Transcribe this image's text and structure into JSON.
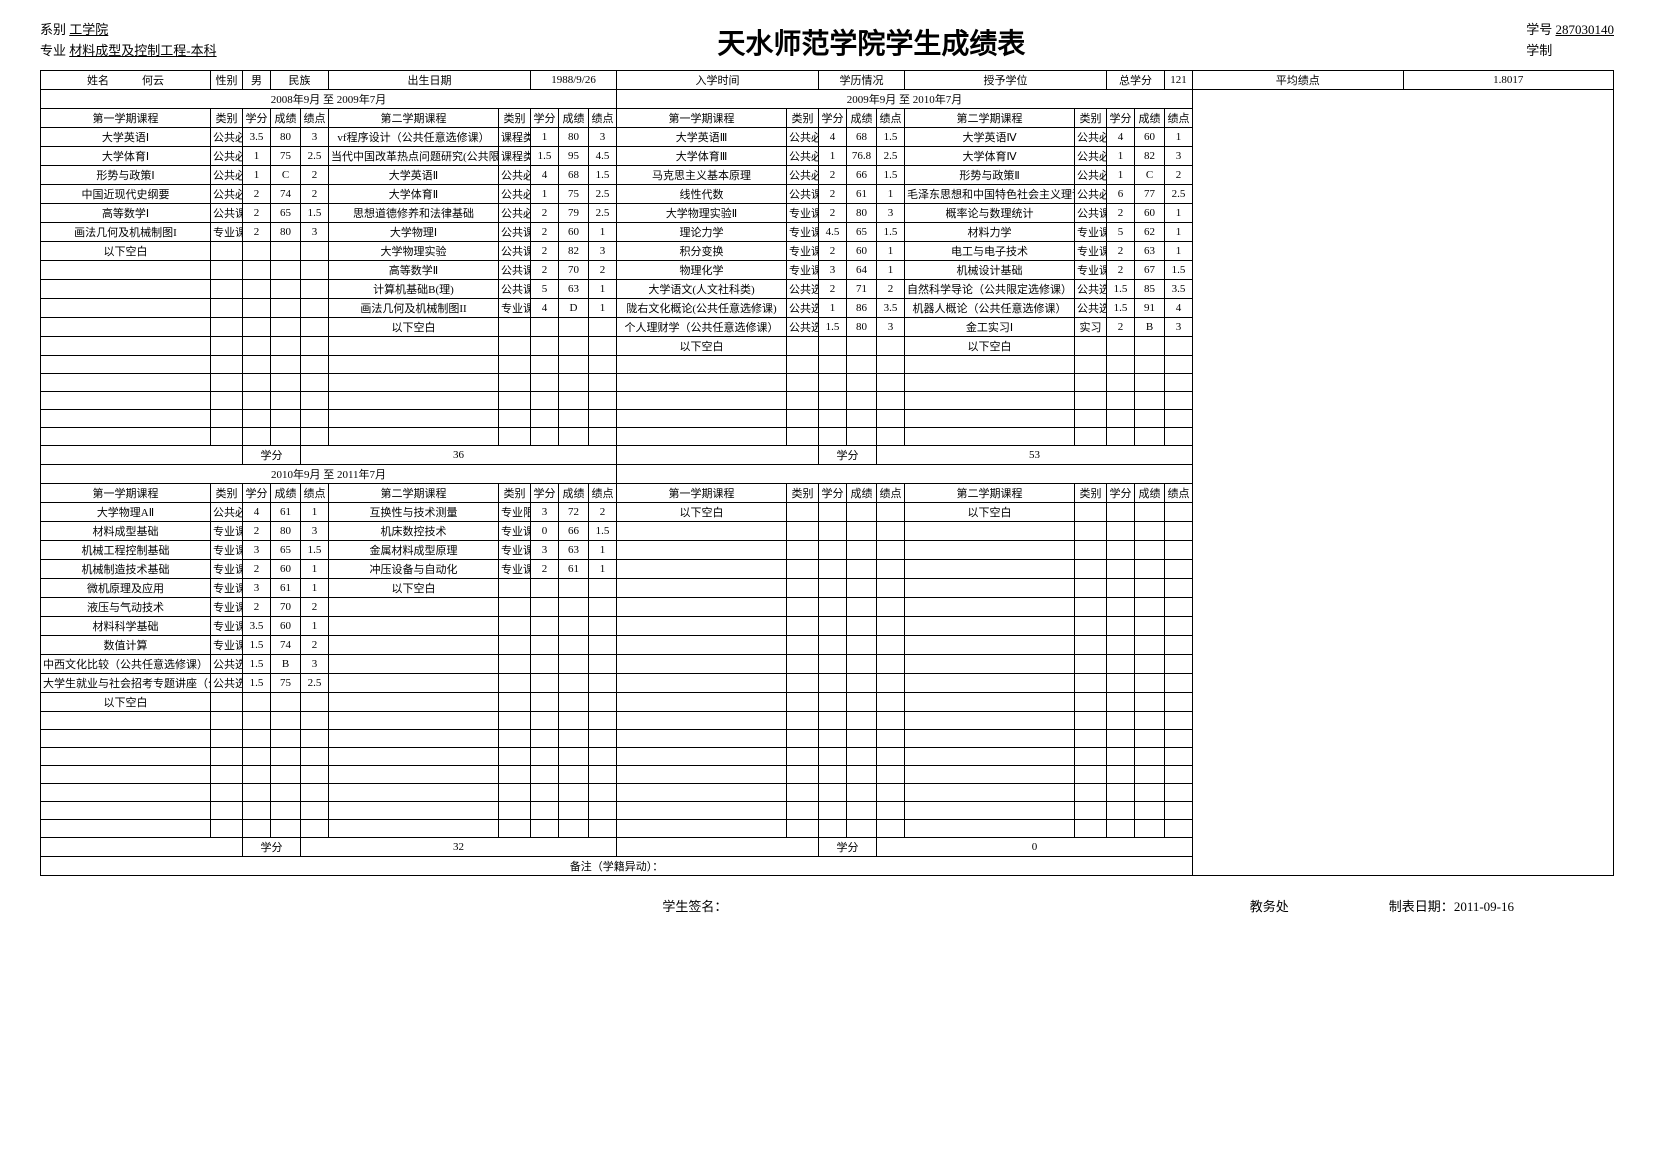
{
  "header": {
    "dept_label": "系别",
    "dept": "工学院",
    "major_label": "专业",
    "major": "材料成型及控制工程-本科",
    "title": "天水师范学院学生成绩表",
    "sid_label": "学号",
    "sid": "287030140",
    "system_label": "学制",
    "system": ""
  },
  "info": {
    "name_label": "姓名",
    "name": "何云",
    "gender_label": "性别",
    "gender": "男",
    "ethnic_label": "民族",
    "ethnic": "",
    "birth_label": "出生日期",
    "birth": "1988/9/26",
    "enroll_label": "入学时间",
    "enroll": "",
    "edu_label": "学历情况",
    "edu": "",
    "degree_label": "授予学位",
    "degree": "",
    "total_credit_label": "总学分",
    "total_credit": "121",
    "gpa_label": "平均绩点",
    "gpa": "1.8017"
  },
  "col_headers": {
    "course": "学期课程",
    "type": "类别",
    "credit": "学分",
    "grade": "成绩",
    "point": "绩点",
    "sem1_prefix": "第一",
    "sem2_prefix": "第二"
  },
  "years": [
    {
      "year_header": "2008年9月 至 2009年7月",
      "sem1": [
        {
          "name": "大学英语Ⅰ",
          "type": "公共必修课",
          "credit": "3.5",
          "grade": "80",
          "point": "3"
        },
        {
          "name": "大学体育Ⅰ",
          "type": "公共必修课",
          "credit": "1",
          "grade": "75",
          "point": "2.5"
        },
        {
          "name": "形势与政策Ⅰ",
          "type": "公共必修课",
          "credit": "1",
          "grade": "C",
          "point": "2"
        },
        {
          "name": "中国近现代史纲要",
          "type": "公共必修课",
          "credit": "2",
          "grade": "74",
          "point": "2"
        },
        {
          "name": "高等数学Ⅰ",
          "type": "公共课",
          "credit": "2",
          "grade": "65",
          "point": "1.5"
        },
        {
          "name": "画法几何及机械制图I",
          "type": "专业课",
          "credit": "2",
          "grade": "80",
          "point": "3"
        },
        {
          "name": "以下空白",
          "type": "",
          "credit": "",
          "grade": "",
          "point": ""
        }
      ],
      "sem2": [
        {
          "name": "vf程序设计（公共任意选修课）",
          "type": "课程类别",
          "credit": "1",
          "grade": "80",
          "point": "3"
        },
        {
          "name": "当代中国改革热点问题研究(公共限定选修课)",
          "type": "课程类别",
          "credit": "1.5",
          "grade": "95",
          "point": "4.5",
          "tiny": true
        },
        {
          "name": "大学英语Ⅱ",
          "type": "公共必修课",
          "credit": "4",
          "grade": "68",
          "point": "1.5"
        },
        {
          "name": "大学体育Ⅱ",
          "type": "公共必修课",
          "credit": "1",
          "grade": "75",
          "point": "2.5"
        },
        {
          "name": "思想道德修养和法律基础",
          "type": "公共必修课",
          "credit": "2",
          "grade": "79",
          "point": "2.5"
        },
        {
          "name": "大学物理Ⅰ",
          "type": "公共课",
          "credit": "2",
          "grade": "60",
          "point": "1"
        },
        {
          "name": "大学物理实验",
          "type": "公共课",
          "credit": "2",
          "grade": "82",
          "point": "3"
        },
        {
          "name": "高等数学Ⅱ",
          "type": "公共课",
          "credit": "2",
          "grade": "70",
          "point": "2"
        },
        {
          "name": "计算机基础B(理)",
          "type": "公共课",
          "credit": "5",
          "grade": "63",
          "point": "1"
        },
        {
          "name": "画法几何及机械制图II",
          "type": "专业课",
          "credit": "4",
          "grade": "D",
          "point": "1"
        },
        {
          "name": "以下空白",
          "type": "",
          "credit": "",
          "grade": "",
          "point": ""
        }
      ],
      "credit_total_label": "学分",
      "credit_total": "36"
    },
    {
      "year_header": "2009年9月 至 2010年7月",
      "sem1": [
        {
          "name": "大学英语Ⅲ",
          "type": "公共必修课",
          "credit": "4",
          "grade": "68",
          "point": "1.5"
        },
        {
          "name": "大学体育Ⅲ",
          "type": "公共必修课",
          "credit": "1",
          "grade": "76.8",
          "point": "2.5"
        },
        {
          "name": "马克思主义基本原理",
          "type": "公共必修课",
          "credit": "2",
          "grade": "66",
          "point": "1.5"
        },
        {
          "name": "线性代数",
          "type": "公共课",
          "credit": "2",
          "grade": "61",
          "point": "1"
        },
        {
          "name": "大学物理实验Ⅱ",
          "type": "专业课",
          "credit": "2",
          "grade": "80",
          "point": "3"
        },
        {
          "name": "理论力学",
          "type": "专业课",
          "credit": "4.5",
          "grade": "65",
          "point": "1.5"
        },
        {
          "name": "积分变换",
          "type": "专业课",
          "credit": "2",
          "grade": "60",
          "point": "1"
        },
        {
          "name": "物理化学",
          "type": "专业课",
          "credit": "3",
          "grade": "64",
          "point": "1"
        },
        {
          "name": "大学语文(人文社科类)",
          "type": "公共选修课",
          "credit": "2",
          "grade": "71",
          "point": "2"
        },
        {
          "name": "陇右文化概论(公共任意选修课)",
          "type": "公共选修课",
          "credit": "1",
          "grade": "86",
          "point": "3.5"
        },
        {
          "name": "个人理财学（公共任意选修课）",
          "type": "公共选修课",
          "credit": "1.5",
          "grade": "80",
          "point": "3"
        },
        {
          "name": "以下空白",
          "type": "",
          "credit": "",
          "grade": "",
          "point": ""
        }
      ],
      "sem2": [
        {
          "name": "大学英语Ⅳ",
          "type": "公共必修课",
          "credit": "4",
          "grade": "60",
          "point": "1"
        },
        {
          "name": "大学体育Ⅳ",
          "type": "公共必修课",
          "credit": "1",
          "grade": "82",
          "point": "3"
        },
        {
          "name": "形势与政策Ⅱ",
          "type": "公共必修课",
          "credit": "1",
          "grade": "C",
          "point": "2"
        },
        {
          "name": "毛泽东思想和中国特色社会主义理论体系概论",
          "type": "公共必修课",
          "credit": "6",
          "grade": "77",
          "point": "2.5",
          "tiny": true
        },
        {
          "name": "概率论与数理统计",
          "type": "公共课",
          "credit": "2",
          "grade": "60",
          "point": "1"
        },
        {
          "name": "材料力学",
          "type": "专业课",
          "credit": "5",
          "grade": "62",
          "point": "1"
        },
        {
          "name": "电工与电子技术",
          "type": "专业课",
          "credit": "2",
          "grade": "63",
          "point": "1"
        },
        {
          "name": "机械设计基础",
          "type": "专业课",
          "credit": "2",
          "grade": "67",
          "point": "1.5"
        },
        {
          "name": "自然科学导论（公共限定选修课）",
          "type": "公共选修课",
          "credit": "1.5",
          "grade": "85",
          "point": "3.5"
        },
        {
          "name": "机器人概论（公共任意选修课）",
          "type": "公共选修课",
          "credit": "1.5",
          "grade": "91",
          "point": "4"
        },
        {
          "name": "金工实习Ⅰ",
          "type": "实习",
          "credit": "2",
          "grade": "B",
          "point": "3"
        },
        {
          "name": "以下空白",
          "type": "",
          "credit": "",
          "grade": "",
          "point": ""
        }
      ],
      "credit_total_label": "学分",
      "credit_total": "53"
    },
    {
      "year_header": "2010年9月 至 2011年7月",
      "sem1": [
        {
          "name": "大学物理AⅡ",
          "type": "公共必修课",
          "credit": "4",
          "grade": "61",
          "point": "1"
        },
        {
          "name": "材料成型基础",
          "type": "专业课",
          "credit": "2",
          "grade": "80",
          "point": "3"
        },
        {
          "name": "机械工程控制基础",
          "type": "专业课",
          "credit": "3",
          "grade": "65",
          "point": "1.5"
        },
        {
          "name": "机械制造技术基础",
          "type": "专业课",
          "credit": "2",
          "grade": "60",
          "point": "1"
        },
        {
          "name": "微机原理及应用",
          "type": "专业课",
          "credit": "3",
          "grade": "61",
          "point": "1"
        },
        {
          "name": "液压与气动技术",
          "type": "专业课",
          "credit": "2",
          "grade": "70",
          "point": "2"
        },
        {
          "name": "材料科学基础",
          "type": "专业课",
          "credit": "3.5",
          "grade": "60",
          "point": "1"
        },
        {
          "name": "数值计算",
          "type": "专业课",
          "credit": "1.5",
          "grade": "74",
          "point": "2"
        },
        {
          "name": "中西文化比较（公共任意选修课）",
          "type": "公共选修课",
          "credit": "1.5",
          "grade": "B",
          "point": "3"
        },
        {
          "name": "大学生就业与社会招考专题讲座（公共任意选修课）",
          "type": "公共选修课",
          "credit": "1.5",
          "grade": "75",
          "point": "2.5",
          "tiny": true
        },
        {
          "name": "以下空白",
          "type": "",
          "credit": "",
          "grade": "",
          "point": ""
        }
      ],
      "sem2": [
        {
          "name": "互换性与技术测量",
          "type": "专业限选课",
          "credit": "3",
          "grade": "72",
          "point": "2"
        },
        {
          "name": "机床数控技术",
          "type": "专业课",
          "credit": "0",
          "grade": "66",
          "point": "1.5"
        },
        {
          "name": "金属材料成型原理",
          "type": "专业课",
          "credit": "3",
          "grade": "63",
          "point": "1"
        },
        {
          "name": "冲压设备与自动化",
          "type": "专业课",
          "credit": "2",
          "grade": "61",
          "point": "1"
        },
        {
          "name": "以下空白",
          "type": "",
          "credit": "",
          "grade": "",
          "point": ""
        }
      ],
      "credit_total_label": "学分",
      "credit_total": "32"
    },
    {
      "year_header": "",
      "sem1": [
        {
          "name": "以下空白",
          "type": "",
          "credit": "",
          "grade": "",
          "point": ""
        }
      ],
      "sem2": [
        {
          "name": "以下空白",
          "type": "",
          "credit": "",
          "grade": "",
          "point": ""
        }
      ],
      "credit_total_label": "学分",
      "credit_total": "0"
    }
  ],
  "remark_label": "备注（学籍异动）：",
  "footer": {
    "sign_label": "学生签名：",
    "office_label": "教务处",
    "date_label": "制表日期：",
    "date": "2011-09-16"
  },
  "layout": {
    "body_rows_per_block": 18,
    "col_widths": {
      "name": 170,
      "type": 32,
      "credit": 28,
      "grade": 30,
      "point": 28
    }
  }
}
